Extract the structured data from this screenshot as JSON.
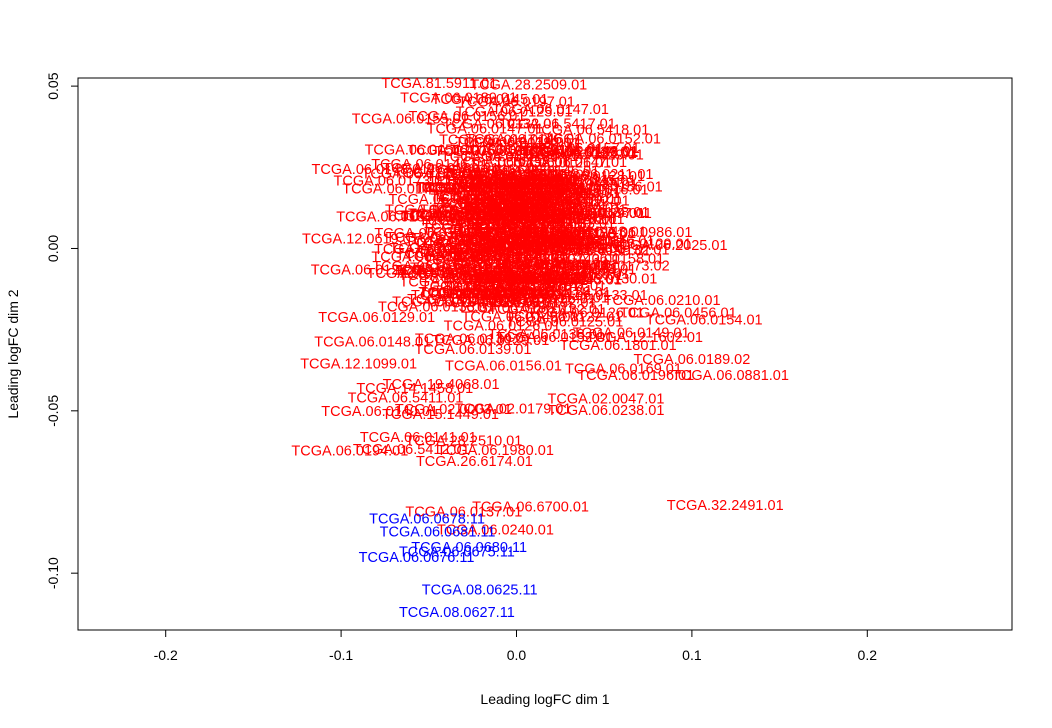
{
  "chart_data": {
    "type": "scatter",
    "title": "",
    "xlabel": "Leading logFC dim 1",
    "ylabel": "Leading logFC dim 2",
    "xlim": [
      -0.25,
      0.2825
    ],
    "ylim": [
      -0.1175,
      0.0525
    ],
    "x_ticks": [
      -0.2,
      -0.1,
      0.0,
      0.1,
      0.2
    ],
    "x_tick_labels": [
      "-0.2",
      "-0.1",
      "0.0",
      "0.1",
      "0.2"
    ],
    "y_ticks": [
      -0.1,
      -0.05,
      0.0,
      0.05
    ],
    "y_tick_labels": [
      "-0.10",
      "-0.05",
      "0.00",
      "0.05"
    ],
    "grid": false,
    "legend": "none",
    "colors": {
      "tumor_01": "#ff0000",
      "normal_11": "#0000ff",
      "axis": "#000000"
    },
    "series": [
      {
        "color": "#ff0000",
        "points": [
          {
            "label": "TCGA.81.5911.01",
            "x": -0.044,
            "y": 0.051
          },
          {
            "label": "TCGA.28.2509.01",
            "x": 0.007,
            "y": 0.0505
          },
          {
            "label": "TCGA.06.0189.01",
            "x": -0.033,
            "y": 0.0465
          },
          {
            "label": "TCGA.06.0197.01",
            "x": 0.0,
            "y": 0.0453
          },
          {
            "label": "TCGA.06.5417.01",
            "x": 0.0233,
            "y": 0.0385
          },
          {
            "label": "TCGA.06.5418.01",
            "x": 0.0424,
            "y": 0.0367
          },
          {
            "label": "TCGA.06.0155.01",
            "x": -0.0606,
            "y": 0.04
          },
          {
            "label": "TCGA.06.0157.01",
            "x": 0.037,
            "y": 0.031
          },
          {
            "label": "TCGA.06.0151.01",
            "x": -0.0533,
            "y": 0.0305
          },
          {
            "label": "TCGA.06.0211.01",
            "x": 0.0451,
            "y": 0.023
          },
          {
            "label": "TCGA.06.0173.01",
            "x": -0.071,
            "y": 0.021
          },
          {
            "label": "TCGA.06.0174.01",
            "x": -0.066,
            "y": 0.0185
          },
          {
            "label": "TCGA.06.0176.01",
            "x": 0.042,
            "y": 0.0182
          },
          {
            "label": "TCGA.06.0177.01",
            "x": 0.0438,
            "y": 0.011
          },
          {
            "label": "TCGA.06.0986.01",
            "x": 0.067,
            "y": 0.005
          },
          {
            "label": "TCGA.12.0619.01",
            "x": -0.089,
            "y": 0.003
          },
          {
            "label": "TCGA.06.2025.01",
            "x": 0.087,
            "y": 0.001
          },
          {
            "label": "TCGA.06.0125.01",
            "x": -0.084,
            "y": -0.0065
          },
          {
            "label": "TCGA.06.0173.02",
            "x": 0.054,
            "y": -0.0053
          },
          {
            "label": "TCGA.06.0130.01",
            "x": 0.047,
            "y": -0.0093
          },
          {
            "label": "TCGA.06.0210.01",
            "x": 0.083,
            "y": -0.0158
          },
          {
            "label": "TCGA.06.0456.01",
            "x": 0.0922,
            "y": -0.0197
          },
          {
            "label": "TCGA.06.0154.01",
            "x": 0.107,
            "y": -0.0218
          },
          {
            "label": "TCGA.06.0122.01",
            "x": 0.027,
            "y": -0.0209
          },
          {
            "label": "TCGA.06.0129.01",
            "x": -0.0797,
            "y": -0.0211
          },
          {
            "label": "TCGA.12.1602.01",
            "x": 0.073,
            "y": -0.0273
          },
          {
            "label": "TCGA.06.1801.01",
            "x": 0.058,
            "y": -0.0298
          },
          {
            "label": "TCGA.06.0148.01",
            "x": -0.082,
            "y": -0.0286
          },
          {
            "label": "TCGA.06.0189.02",
            "x": 0.1,
            "y": -0.034
          },
          {
            "label": "TCGA.06.0169.01",
            "x": 0.061,
            "y": -0.037
          },
          {
            "label": "TCGA.12.1099.01",
            "x": -0.09,
            "y": -0.0354
          },
          {
            "label": "TCGA.06.0881.01",
            "x": 0.122,
            "y": -0.039
          },
          {
            "label": "TCGA.06.0196.01",
            "x": 0.068,
            "y": -0.039
          },
          {
            "label": "TCGA.19.4068.01",
            "x": -0.043,
            "y": -0.0417
          },
          {
            "label": "TCGA.14.1458.01",
            "x": -0.058,
            "y": -0.043
          },
          {
            "label": "TCGA.06.5411.01",
            "x": -0.0633,
            "y": -0.0459
          },
          {
            "label": "TCGA.02.0047.01",
            "x": 0.051,
            "y": -0.0462
          },
          {
            "label": "TCGA.02.0003.01",
            "x": -0.036,
            "y": -0.0495
          },
          {
            "label": "TCGA.02.0179.01",
            "x": -0.002,
            "y": -0.0493
          },
          {
            "label": "TCGA.06.0238.01",
            "x": 0.051,
            "y": -0.0498
          },
          {
            "label": "TCGA.15.1449.01",
            "x": -0.0433,
            "y": -0.051
          },
          {
            "label": "TCGA.28.2510.01",
            "x": -0.03,
            "y": -0.0592
          },
          {
            "label": "TCGA.06.0194.01",
            "x": -0.095,
            "y": -0.0622
          },
          {
            "label": "TCGA.06.5412.01",
            "x": -0.06,
            "y": -0.0617
          },
          {
            "label": "TCGA.06.1980.01",
            "x": -0.012,
            "y": -0.062
          },
          {
            "label": "TCGA.26.6174.01",
            "x": -0.024,
            "y": -0.0655
          },
          {
            "label": "TCGA.06.6700.01",
            "x": 0.008,
            "y": -0.0795
          },
          {
            "label": "TCGA.32.2491.01",
            "x": 0.119,
            "y": -0.079
          },
          {
            "label": "TCGA.06.0240.01",
            "x": -0.012,
            "y": -0.0865
          },
          {
            "label": "TCGA.06.0137.01",
            "x": -0.03,
            "y": -0.081
          },
          {
            "label": "TCGA.06.0140.01",
            "x": -0.078,
            "y": -0.05
          },
          {
            "label": "TCGA.06.0141.01",
            "x": -0.056,
            "y": -0.058
          }
        ]
      },
      {
        "color": "#0000ff",
        "points": [
          {
            "label": "TCGA.06.0678.11",
            "x": -0.051,
            "y": -0.0831
          },
          {
            "label": "TCGA.06.0681.11",
            "x": -0.045,
            "y": -0.0871
          },
          {
            "label": "TCGA.06.0680.11",
            "x": -0.027,
            "y": -0.0919
          },
          {
            "label": "TCGA.06.0675.11",
            "x": -0.034,
            "y": -0.0933
          },
          {
            "label": "TCGA.06.0676.11",
            "x": -0.057,
            "y": -0.095
          },
          {
            "label": "TCGA.08.0625.11",
            "x": -0.021,
            "y": -0.105
          },
          {
            "label": "TCGA.08.0627.11",
            "x": -0.034,
            "y": -0.112
          }
        ]
      }
    ],
    "dense_cluster_labels": [
      "TCGA.06.0125.01",
      "TCGA.06.0126.01",
      "TCGA.06.0128.01",
      "TCGA.06.0129.01",
      "TCGA.06.0130.01",
      "TCGA.06.0132.01",
      "TCGA.06.0133.01",
      "TCGA.06.0137.01",
      "TCGA.06.0138.01",
      "TCGA.06.0139.01",
      "TCGA.06.0141.01",
      "TCGA.06.0143.01",
      "TCGA.06.0145.01",
      "TCGA.06.0146.01",
      "TCGA.06.0147.01",
      "TCGA.06.0148.01",
      "TCGA.06.0149.01",
      "TCGA.06.0152.01",
      "TCGA.06.0156.01",
      "TCGA.06.0158.01"
    ]
  }
}
